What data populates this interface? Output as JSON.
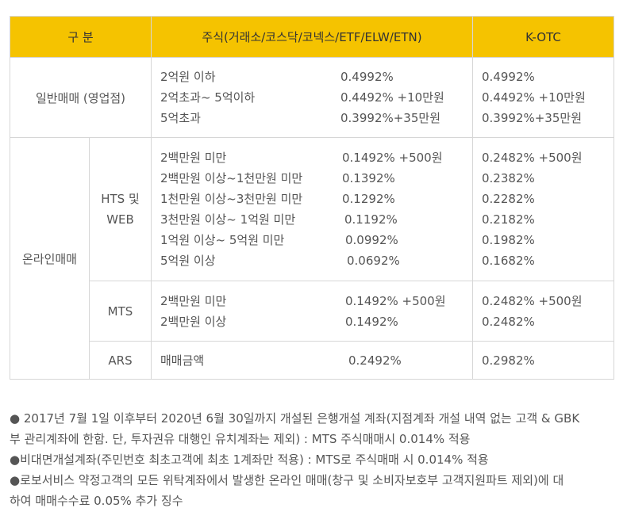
{
  "table": {
    "headers": [
      "구 분",
      "주식(거래소/코스닥/코넥스/ETF/ELW/ETN)",
      "K-OTC"
    ],
    "general": {
      "label": "일반매매 (영업점)",
      "rows": [
        {
          "range": "2억원 이하",
          "rate": "0.4992%",
          "otc": "0.4992%"
        },
        {
          "range": "2억초과~ 5억이하",
          "rate": "0.4492% +10만원",
          "otc": "0.4492% +10만원"
        },
        {
          "range": "5억초과",
          "rate": "0.3992%+35만원",
          "otc": "0.3992%+35만원"
        }
      ]
    },
    "online": {
      "label": "온라인매매",
      "hts": {
        "label_line1": "HTS 및",
        "label_line2": "WEB",
        "rows": [
          {
            "range": "2백만원 미만",
            "rate": "0.1492% +500원",
            "otc": "0.2482% +500원"
          },
          {
            "range": "2백만원 이상~1천만원 미만",
            "rate": "0.1392%",
            "otc": "0.2382%"
          },
          {
            "range": "1천만원 이상~3천만원 미만",
            "rate": "0.1292%",
            "otc": "0.2282%"
          },
          {
            "range": "3천만원 이상~ 1억원 미만",
            "rate": "0.1192%",
            "otc": "0.2182%"
          },
          {
            "range": "1억원 이상~ 5억원 미만",
            "rate": "0.0992%",
            "otc": "0.1982%"
          },
          {
            "range": "5억원 이상",
            "rate": "0.0692%",
            "otc": "0.1682%"
          }
        ]
      },
      "mts": {
        "label": "MTS",
        "rows": [
          {
            "range": "2백만원 미만",
            "rate": "0.1492% +500원",
            "otc": "0.2482% +500원"
          },
          {
            "range": "2백만원 이상",
            "rate": "0.1492%",
            "otc": "0.2482%"
          }
        ]
      },
      "ars": {
        "label": "ARS",
        "range": "매매금액",
        "rate": "0.2492%",
        "otc": "0.2982%"
      }
    }
  },
  "notes": [
    {
      "bullet": "●",
      "line1": " 2017년 7월 1일 이후부터 2020년 6월 30일까지 개설된 은행개설 계좌(지점계좌 개설 내역 없는 고객 & GBK",
      "line2": "부 관리계좌에 한함. 단, 투자권유 대행인 유치계좌는 제외) : MTS 주식매매시 0.014% 적용"
    },
    {
      "bullet": "●",
      "line1": "비대면개설계좌(주민번호 최초고객에 최초 1계좌만 적용) : MTS로 주식매매 시 0.014% 적용",
      "line2": ""
    },
    {
      "bullet": "●",
      "line1": "로보서비스 약정고객의 모든 위탁계좌에서 발생한 온라인 매매(창구 및 소비자보호부 고객지원파트 제외)에 대",
      "line2": "하여 매매수수료 0.05% 추가 징수"
    }
  ]
}
